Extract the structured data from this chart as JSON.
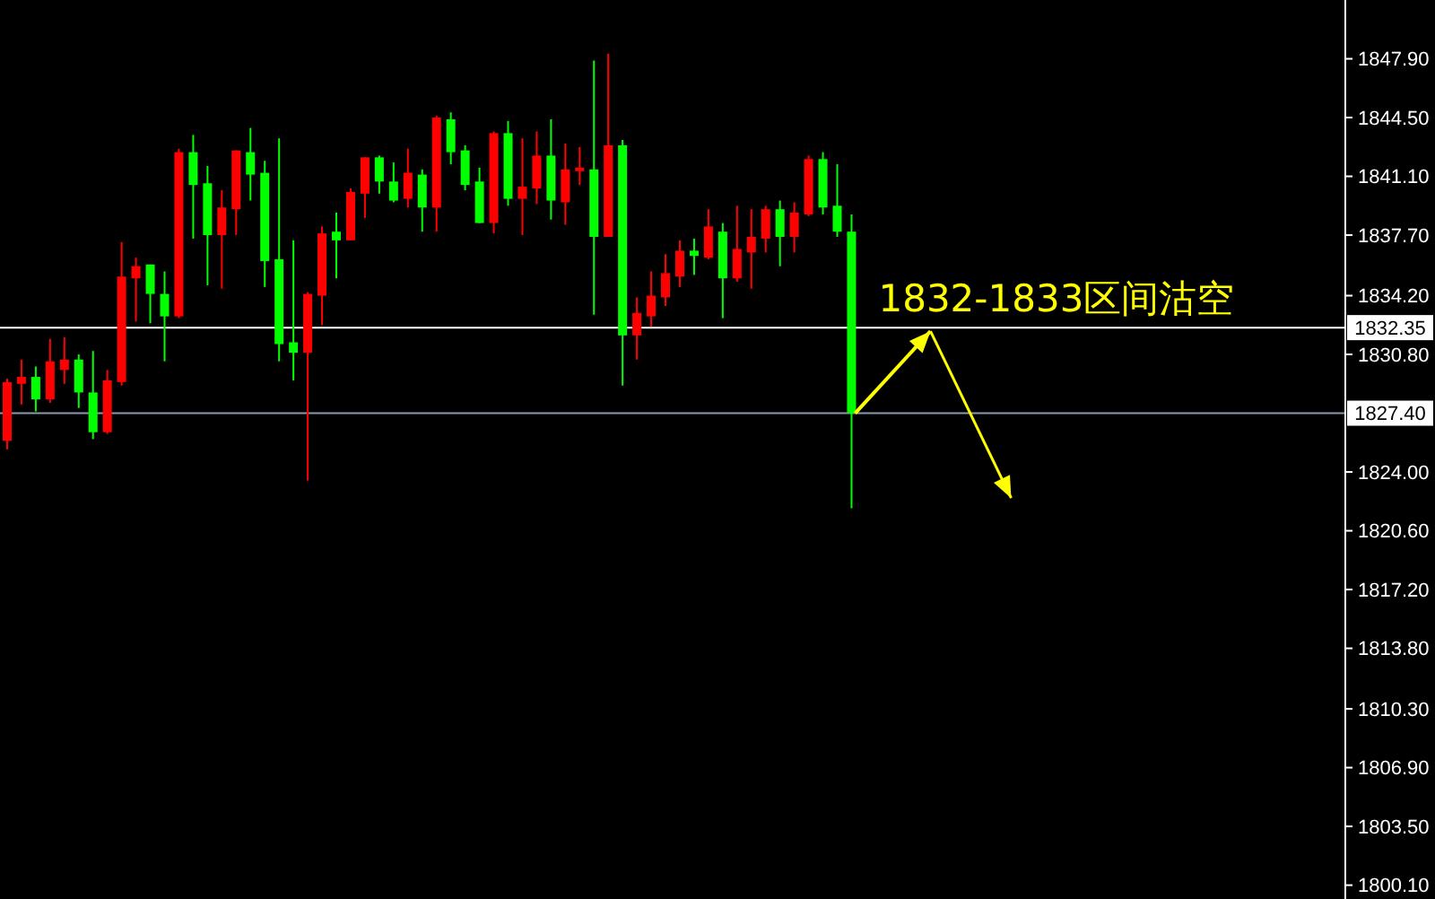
{
  "chart_data": {
    "type": "candlestick",
    "categories": [
      null,
      null,
      null,
      null,
      null,
      null,
      null,
      null,
      null,
      null,
      null,
      null,
      null,
      null,
      null,
      null,
      null,
      null,
      null,
      null,
      null,
      null,
      null,
      null,
      null,
      null,
      null,
      null,
      null,
      null,
      null,
      null,
      null,
      null,
      null,
      null,
      null,
      null,
      null,
      null,
      null,
      null,
      null,
      null,
      null,
      null,
      null,
      null,
      null,
      null,
      null,
      null,
      null,
      null,
      null,
      null,
      null,
      null,
      null,
      null,
      null,
      null,
      null,
      null,
      null,
      null,
      null,
      null,
      null,
      null,
      null,
      null,
      null,
      null,
      null,
      null,
      null,
      null,
      null,
      null,
      null,
      null,
      null,
      null,
      null,
      null,
      null,
      null,
      null,
      null,
      null,
      null,
      null,
      null
    ],
    "ohlc": [
      [
        1825.8,
        1829.4,
        1825.3,
        1829.2
      ],
      [
        1829.1,
        1830.5,
        1827.9,
        1829.5
      ],
      [
        1829.5,
        1830.1,
        1827.5,
        1828.2
      ],
      [
        1828.2,
        1831.7,
        1828.0,
        1830.4
      ],
      [
        1829.9,
        1831.8,
        1829.1,
        1830.5
      ],
      [
        1830.5,
        1830.8,
        1827.7,
        1828.6
      ],
      [
        1828.6,
        1831.0,
        1825.9,
        1826.3
      ],
      [
        1826.3,
        1829.9,
        1826.2,
        1829.3
      ],
      [
        1829.2,
        1837.3,
        1829.0,
        1835.3
      ],
      [
        1835.2,
        1836.4,
        1832.7,
        1835.9
      ],
      [
        1836.0,
        1836.0,
        1832.6,
        1834.3
      ],
      [
        1834.3,
        1835.6,
        1830.4,
        1833.0
      ],
      [
        1833.0,
        1842.7,
        1832.9,
        1842.5
      ],
      [
        1842.5,
        1843.5,
        1837.5,
        1840.6
      ],
      [
        1840.7,
        1841.7,
        1834.8,
        1837.7
      ],
      [
        1837.7,
        1840.3,
        1834.6,
        1839.3
      ],
      [
        1839.2,
        1842.6,
        1837.7,
        1842.6
      ],
      [
        1842.5,
        1843.9,
        1839.7,
        1841.2
      ],
      [
        1841.3,
        1842.0,
        1834.7,
        1836.2
      ],
      [
        1836.3,
        1843.3,
        1830.4,
        1831.4
      ],
      [
        1831.5,
        1837.4,
        1829.3,
        1830.9
      ],
      [
        1830.9,
        1834.4,
        1823.5,
        1834.3
      ],
      [
        1834.2,
        1838.2,
        1832.5,
        1837.8
      ],
      [
        1837.9,
        1839.0,
        1835.2,
        1837.4
      ],
      [
        1837.4,
        1840.4,
        1837.4,
        1840.2
      ],
      [
        1840.1,
        1842.2,
        1838.7,
        1842.2
      ],
      [
        1842.2,
        1842.3,
        1840.1,
        1840.8
      ],
      [
        1840.8,
        1841.9,
        1839.6,
        1839.7
      ],
      [
        1839.8,
        1842.7,
        1839.3,
        1841.3
      ],
      [
        1841.2,
        1841.5,
        1837.9,
        1839.3
      ],
      [
        1839.3,
        1844.6,
        1837.9,
        1844.5
      ],
      [
        1844.4,
        1844.8,
        1841.8,
        1842.5
      ],
      [
        1842.6,
        1842.9,
        1840.3,
        1840.6
      ],
      [
        1840.8,
        1841.6,
        1838.4,
        1838.4
      ],
      [
        1838.4,
        1843.7,
        1837.8,
        1843.6
      ],
      [
        1843.6,
        1844.3,
        1839.4,
        1839.8
      ],
      [
        1839.8,
        1843.3,
        1837.7,
        1840.5
      ],
      [
        1840.4,
        1843.7,
        1839.5,
        1842.3
      ],
      [
        1842.3,
        1844.4,
        1838.6,
        1839.7
      ],
      [
        1839.6,
        1843.0,
        1838.3,
        1841.5
      ],
      [
        1841.4,
        1842.8,
        1840.6,
        1841.6
      ],
      [
        1841.5,
        1847.8,
        1833.1,
        1837.6
      ],
      [
        1837.6,
        1848.2,
        1837.6,
        1842.9
      ],
      [
        1842.9,
        1843.2,
        1829.0,
        1831.9
      ],
      [
        1831.9,
        1834.1,
        1830.5,
        1833.2
      ],
      [
        1833.0,
        1835.6,
        1832.4,
        1834.2
      ],
      [
        1834.1,
        1836.6,
        1833.6,
        1835.5
      ],
      [
        1835.3,
        1837.4,
        1834.7,
        1836.8
      ],
      [
        1836.8,
        1837.5,
        1835.4,
        1836.5
      ],
      [
        1836.4,
        1839.2,
        1836.3,
        1838.2
      ],
      [
        1837.9,
        1838.4,
        1832.9,
        1835.2
      ],
      [
        1835.2,
        1839.4,
        1835.0,
        1836.9
      ],
      [
        1836.7,
        1839.2,
        1834.6,
        1837.6
      ],
      [
        1837.5,
        1839.4,
        1836.7,
        1839.2
      ],
      [
        1839.2,
        1839.7,
        1835.9,
        1837.6
      ],
      [
        1837.6,
        1839.6,
        1836.7,
        1839.0
      ],
      [
        1838.9,
        1842.3,
        1838.8,
        1842.1
      ],
      [
        1842.1,
        1842.5,
        1838.9,
        1839.3
      ],
      [
        1839.4,
        1841.8,
        1837.6,
        1837.9
      ],
      [
        1837.9,
        1838.9,
        1821.9,
        1827.4
      ],
      null,
      null,
      null,
      null,
      null,
      null,
      null,
      null,
      null,
      null,
      null,
      null,
      null,
      null,
      null,
      null,
      null,
      null,
      null,
      null,
      null,
      null,
      null,
      null,
      null,
      null,
      null,
      null,
      null,
      null,
      null,
      null,
      null,
      null
    ],
    "colors": [
      "#ff0000",
      "#ff0000",
      "#00ff00",
      "#ff0000",
      "#ff0000",
      "#00ff00",
      "#00ff00",
      "#ff0000",
      "#ff0000",
      "#ff0000",
      "#00ff00",
      "#00ff00",
      "#ff0000",
      "#00ff00",
      "#00ff00",
      "#ff0000",
      "#ff0000",
      "#00ff00",
      "#00ff00",
      "#00ff00",
      "#00ff00",
      "#ff0000",
      "#ff0000",
      "#00ff00",
      "#ff0000",
      "#ff0000",
      "#00ff00",
      "#00ff00",
      "#ff0000",
      "#00ff00",
      "#ff0000",
      "#00ff00",
      "#00ff00",
      "#00ff00",
      "#ff0000",
      "#00ff00",
      "#ff0000",
      "#ff0000",
      "#00ff00",
      "#ff0000",
      "#ff0000",
      "#00ff00",
      "#ff0000",
      "#00ff00",
      "#ff0000",
      "#ff0000",
      "#ff0000",
      "#ff0000",
      "#00ff00",
      "#ff0000",
      "#00ff00",
      "#ff0000",
      "#ff0000",
      "#ff0000",
      "#00ff00",
      "#ff0000",
      "#ff0000",
      "#00ff00",
      "#00ff00",
      "#00ff00",
      null,
      null,
      null,
      null,
      null,
      null,
      null,
      null,
      null,
      null,
      null,
      null,
      null,
      null,
      null,
      null,
      null,
      null,
      null,
      null,
      null,
      null,
      null,
      null,
      null,
      null,
      null,
      null,
      null,
      null,
      null,
      null,
      null,
      null
    ],
    "ylim": [
      1799.3,
      1851.3
    ],
    "yticks": [
      {
        "value": 1800.1,
        "label": "1800.10"
      },
      {
        "value": 1803.5,
        "label": "1803.50"
      },
      {
        "value": 1806.9,
        "label": "1806.90"
      },
      {
        "value": 1810.3,
        "label": "1810.30"
      },
      {
        "value": 1813.8,
        "label": "1813.80"
      },
      {
        "value": 1817.2,
        "label": "1817.20"
      },
      {
        "value": 1820.6,
        "label": "1820.60"
      },
      {
        "value": 1824.0,
        "label": "1824.00"
      },
      {
        "value": 1830.8,
        "label": "1830.80"
      },
      {
        "value": 1834.2,
        "label": "1834.20"
      },
      {
        "value": 1837.7,
        "label": "1837.70"
      },
      {
        "value": 1841.1,
        "label": "1841.10"
      },
      {
        "value": 1844.5,
        "label": "1844.50"
      },
      {
        "value": 1847.9,
        "label": "1847.90"
      }
    ],
    "ref_lines": [
      {
        "axis": "y",
        "value": 1832.35,
        "label": "1832.35",
        "color": "#ffffff"
      },
      {
        "axis": "y",
        "value": 1827.4,
        "label": "1827.40",
        "color": "#8a9bb0"
      }
    ],
    "annotations": [
      "1832-1833区间沽空"
    ],
    "grid": false,
    "legend": false
  }
}
